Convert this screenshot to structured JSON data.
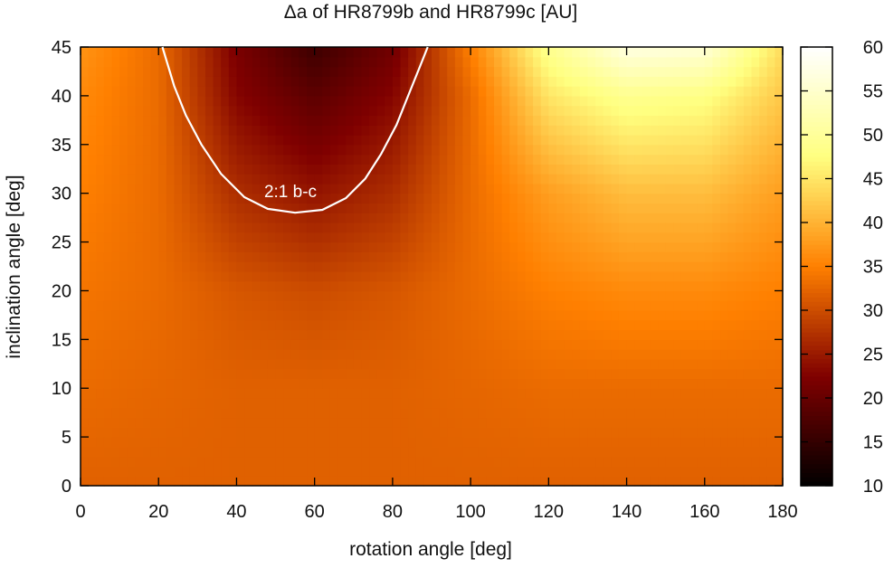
{
  "chart_data": {
    "type": "heatmap",
    "title": "Δa of HR8799b and HR8799c [AU]",
    "xlabel": "rotation angle [deg]",
    "ylabel": "inclination angle [deg]",
    "xlim": [
      0,
      180
    ],
    "ylim": [
      0,
      45
    ],
    "xticks": [
      "0",
      "20",
      "40",
      "60",
      "80",
      "100",
      "120",
      "140",
      "160",
      "180"
    ],
    "yticks": [
      "0",
      "5",
      "10",
      "15",
      "20",
      "25",
      "30",
      "35",
      "40",
      "45"
    ],
    "colorbar": {
      "range": [
        10,
        60
      ],
      "ticks": [
        "10",
        "15",
        "20",
        "25",
        "30",
        "35",
        "40",
        "45",
        "50",
        "55",
        "60"
      ],
      "colormap": "afmhot"
    },
    "contour": {
      "label": "2:1 b-c",
      "color": "#ffffff",
      "points": [
        [
          21,
          45
        ],
        [
          24,
          41
        ],
        [
          27,
          38
        ],
        [
          31,
          35
        ],
        [
          36,
          32
        ],
        [
          42,
          29.6
        ],
        [
          48,
          28.4
        ],
        [
          55,
          28
        ],
        [
          62,
          28.3
        ],
        [
          68,
          29.5
        ],
        [
          73,
          31.5
        ],
        [
          77,
          34
        ],
        [
          81,
          37
        ],
        [
          84,
          40
        ],
        [
          87,
          43
        ],
        [
          89,
          45
        ]
      ]
    },
    "grid_sample": {
      "x": [
        0,
        20,
        40,
        60,
        80,
        100,
        120,
        140,
        160,
        180
      ],
      "y": [
        0,
        10,
        20,
        30,
        40,
        45
      ],
      "values": [
        [
          32,
          32,
          32,
          32,
          32,
          32,
          32,
          32,
          32,
          32
        ],
        [
          33,
          32.5,
          32,
          32,
          32,
          32.5,
          33,
          33,
          33,
          33
        ],
        [
          34,
          33,
          31,
          30,
          31,
          33,
          35,
          36,
          36,
          35
        ],
        [
          35,
          33,
          27,
          24.5,
          27,
          33,
          38,
          41,
          41,
          38
        ],
        [
          36,
          33,
          23,
          19,
          23,
          33,
          45,
          49,
          48,
          42
        ],
        [
          37,
          33,
          22,
          16,
          21,
          35,
          49,
          57,
          56,
          44
        ]
      ]
    }
  }
}
